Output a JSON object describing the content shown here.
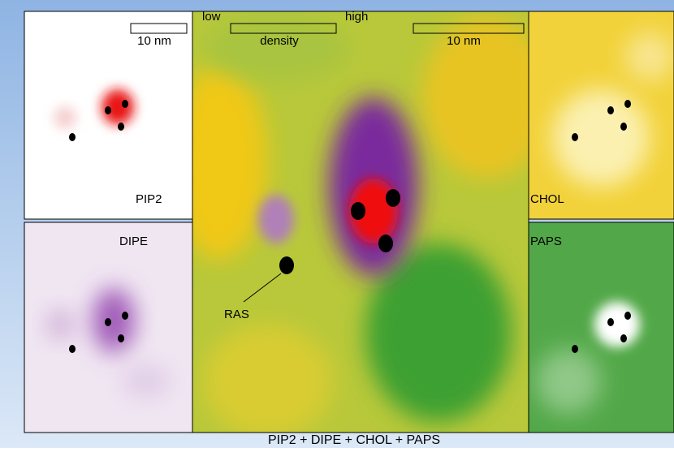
{
  "scale_bars": {
    "small": "10 nm",
    "main": "10 nm"
  },
  "density_legend": {
    "low": "low",
    "high": "high",
    "label": "density"
  },
  "panels": {
    "pip2": "PIP2",
    "dipe": "DIPE",
    "chol": "CHOL",
    "paps": "PAPS"
  },
  "annotation": "RAS",
  "caption": "PIP2 + DIPE + CHOL + PAPS"
}
